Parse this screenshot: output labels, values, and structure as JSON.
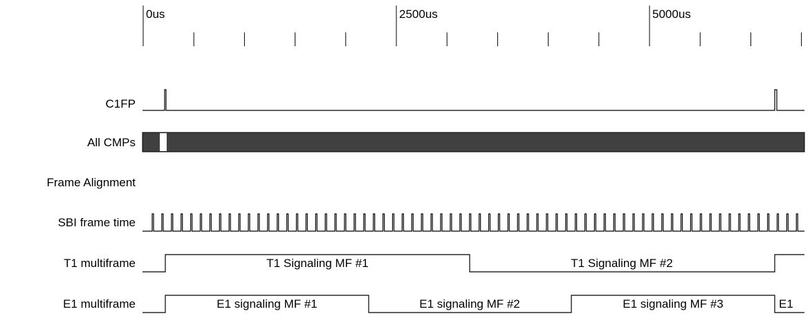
{
  "timescale": {
    "unit": "us",
    "major_labels": [
      {
        "t": 0,
        "label": "0us"
      },
      {
        "t": 2500,
        "label": "2500us"
      },
      {
        "t": 5000,
        "label": "5000us"
      }
    ],
    "minor_step": 500,
    "t_min": -10,
    "t_max": 6500
  },
  "signals": [
    {
      "key": "c1fp",
      "label": "C1FP"
    },
    {
      "key": "cmps",
      "label": "All CMPs",
      "fill_color": "#404040"
    },
    {
      "key": "frame_alignment",
      "label": "Frame Alignment"
    },
    {
      "key": "sbi",
      "label": "SBI frame time"
    },
    {
      "key": "t1",
      "label": "T1 multiframe",
      "segments": [
        {
          "label": "T1 Signaling MF #1"
        },
        {
          "label": "T1 Signaling MF #2"
        }
      ]
    },
    {
      "key": "e1",
      "label": "E1 multiframe",
      "segments": [
        {
          "label": "E1 signaling MF #1"
        },
        {
          "label": "E1 signaling MF #2"
        },
        {
          "label": "E1 signaling MF #3"
        },
        {
          "label": "E1"
        }
      ]
    }
  ]
}
